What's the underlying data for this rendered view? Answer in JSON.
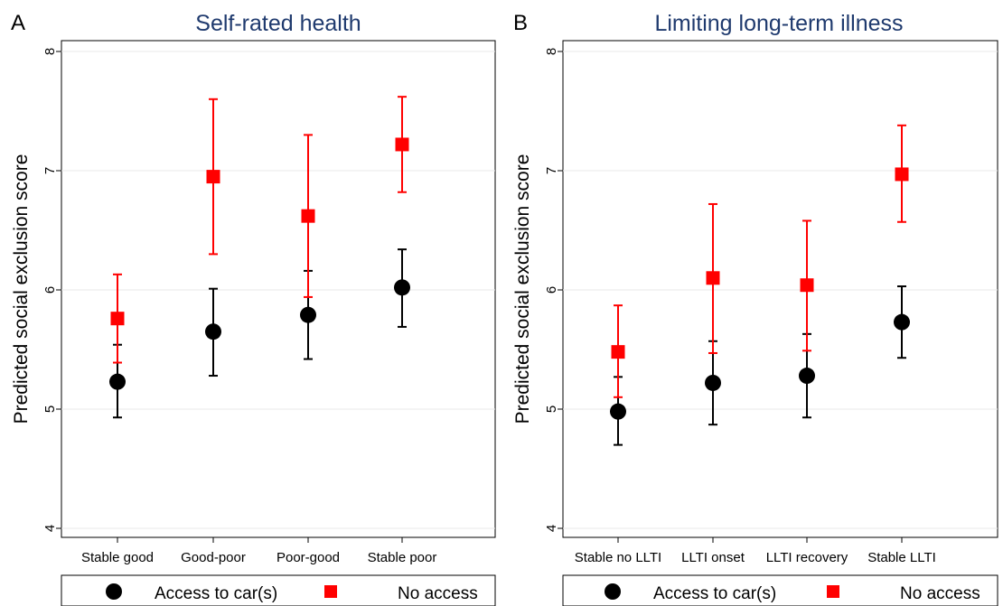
{
  "chart_data": [
    {
      "type": "scatter",
      "panel_letter": "A",
      "title": "Self-rated health",
      "ylabel": "Predicted social exclusion score",
      "xlabel": "",
      "ylim": [
        4,
        8
      ],
      "yticks": [
        "4",
        "5",
        "6",
        "7",
        "8"
      ],
      "grid": true,
      "categories": [
        "Stable good",
        "Good-poor",
        "Poor-good",
        "Stable poor"
      ],
      "series": [
        {
          "name": "Access to car(s)",
          "color": "#000000",
          "marker": "circle",
          "values": [
            5.23,
            5.65,
            5.79,
            6.02
          ],
          "ci_low": [
            4.93,
            5.28,
            5.42,
            5.69
          ],
          "ci_high": [
            5.54,
            6.01,
            6.16,
            6.34
          ]
        },
        {
          "name": "No access",
          "color": "#ff0000",
          "marker": "square",
          "values": [
            5.76,
            6.95,
            6.62,
            7.22
          ],
          "ci_low": [
            5.39,
            6.3,
            5.94,
            6.82
          ],
          "ci_high": [
            6.13,
            7.6,
            7.3,
            7.62
          ]
        }
      ],
      "legend": {
        "placement": "bottom"
      }
    },
    {
      "type": "scatter",
      "panel_letter": "B",
      "title": "Limiting long-term illness",
      "ylabel": "Predicted social exclusion score",
      "xlabel": "",
      "ylim": [
        4,
        8
      ],
      "yticks": [
        "4",
        "5",
        "6",
        "7",
        "8"
      ],
      "grid": true,
      "categories": [
        "Stable no LLTI",
        "LLTI onset",
        "LLTI recovery",
        "Stable LLTI"
      ],
      "series": [
        {
          "name": "Access to car(s)",
          "color": "#000000",
          "marker": "circle",
          "values": [
            4.98,
            5.22,
            5.28,
            5.73
          ],
          "ci_low": [
            4.7,
            4.87,
            4.93,
            5.43
          ],
          "ci_high": [
            5.27,
            5.57,
            5.63,
            6.03
          ]
        },
        {
          "name": "No access",
          "color": "#ff0000",
          "marker": "square",
          "values": [
            5.48,
            6.1,
            6.04,
            6.97
          ],
          "ci_low": [
            5.1,
            5.47,
            5.49,
            6.57
          ],
          "ci_high": [
            5.87,
            6.72,
            6.58,
            7.38
          ]
        }
      ],
      "legend": {
        "placement": "bottom"
      }
    }
  ]
}
